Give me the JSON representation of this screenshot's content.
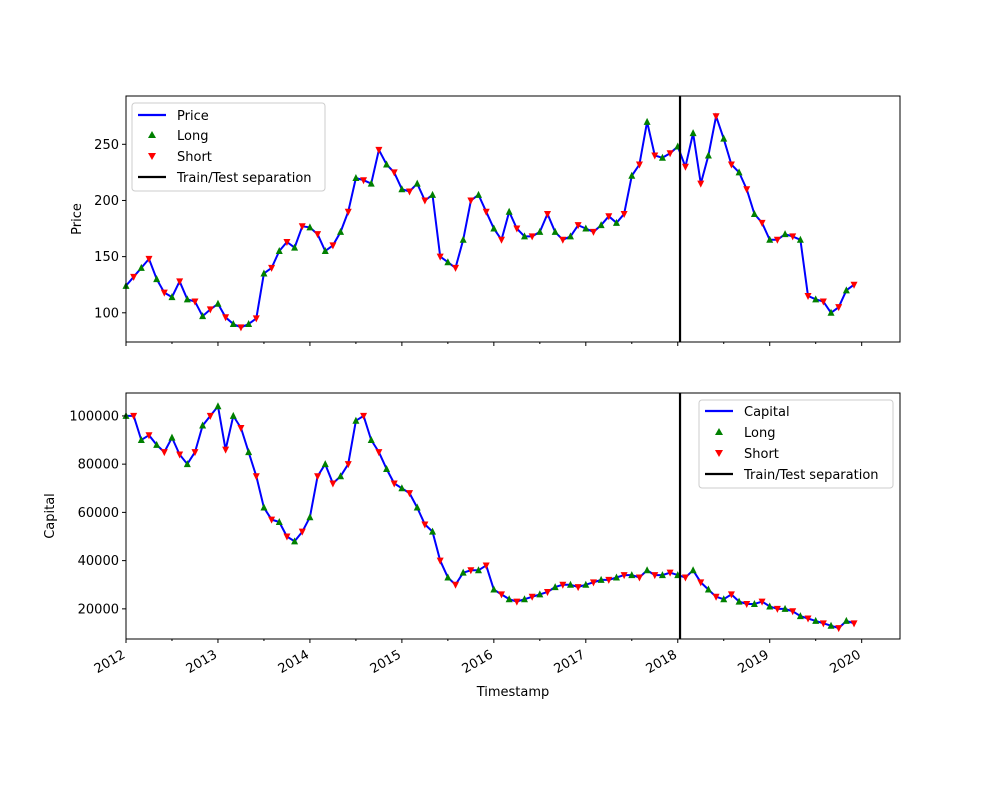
{
  "chart_data": [
    {
      "type": "line",
      "xlabel": "",
      "ylabel": "Price",
      "xlim": [
        "2012-01-01",
        "2020-06-01"
      ],
      "ylim": [
        74,
        293
      ],
      "yticks": [
        100,
        150,
        200,
        250
      ],
      "grid": false,
      "legend_placement": "upper-left",
      "legend": [
        {
          "label": "Price",
          "kind": "line",
          "color": "#0000ff"
        },
        {
          "label": "Long",
          "kind": "marker-up",
          "color": "#008000"
        },
        {
          "label": "Short",
          "kind": "marker-down",
          "color": "#ff0000"
        },
        {
          "label": "Train/Test separation",
          "kind": "line",
          "color": "#000000"
        }
      ],
      "separation_date": "2018-01-10",
      "series": [
        {
          "name": "Price",
          "color": "#0000ff",
          "x": [
            "2012-01-01",
            "2012-02-01",
            "2012-03-01",
            "2012-04-01",
            "2012-05-01",
            "2012-06-01",
            "2012-07-01",
            "2012-08-01",
            "2012-09-01",
            "2012-10-01",
            "2012-11-01",
            "2012-12-01",
            "2013-01-01",
            "2013-02-01",
            "2013-03-01",
            "2013-04-01",
            "2013-05-01",
            "2013-06-01",
            "2013-07-01",
            "2013-08-01",
            "2013-09-01",
            "2013-10-01",
            "2013-11-01",
            "2013-12-01",
            "2014-01-01",
            "2014-02-01",
            "2014-03-01",
            "2014-04-01",
            "2014-05-01",
            "2014-06-01",
            "2014-07-01",
            "2014-08-01",
            "2014-09-01",
            "2014-10-01",
            "2014-11-01",
            "2014-12-01",
            "2015-01-01",
            "2015-02-01",
            "2015-03-01",
            "2015-04-01",
            "2015-05-01",
            "2015-06-01",
            "2015-07-01",
            "2015-08-01",
            "2015-09-01",
            "2015-10-01",
            "2015-11-01",
            "2015-12-01",
            "2016-01-01",
            "2016-02-01",
            "2016-03-01",
            "2016-04-01",
            "2016-05-01",
            "2016-06-01",
            "2016-07-01",
            "2016-08-01",
            "2016-09-01",
            "2016-10-01",
            "2016-11-01",
            "2016-12-01",
            "2017-01-01",
            "2017-02-01",
            "2017-03-01",
            "2017-04-01",
            "2017-05-01",
            "2017-06-01",
            "2017-07-01",
            "2017-08-01",
            "2017-09-01",
            "2017-10-01",
            "2017-11-01",
            "2017-12-01",
            "2018-01-01",
            "2018-02-01",
            "2018-03-01",
            "2018-04-01",
            "2018-05-01",
            "2018-06-01",
            "2018-07-01",
            "2018-08-01",
            "2018-09-01",
            "2018-10-01",
            "2018-11-01",
            "2018-12-01",
            "2019-01-01",
            "2019-02-01",
            "2019-03-01",
            "2019-04-01",
            "2019-05-01",
            "2019-06-01",
            "2019-07-01",
            "2019-08-01",
            "2019-09-01",
            "2019-10-01",
            "2019-11-01",
            "2019-12-01"
          ],
          "y": [
            124,
            132,
            140,
            148,
            130,
            118,
            114,
            128,
            112,
            110,
            97,
            103,
            108,
            96,
            90,
            87,
            90,
            95,
            135,
            140,
            155,
            163,
            158,
            177,
            176,
            170,
            155,
            160,
            172,
            190,
            220,
            218,
            215,
            245,
            232,
            225,
            210,
            208,
            215,
            200,
            205,
            150,
            145,
            140,
            165,
            200,
            205,
            190,
            175,
            165,
            190,
            175,
            168,
            168,
            172,
            188,
            172,
            165,
            168,
            178,
            175,
            172,
            178,
            186,
            180,
            188,
            222,
            232,
            270,
            240,
            238,
            242,
            248,
            230,
            260,
            215,
            240,
            275,
            255,
            232,
            225,
            210,
            188,
            180,
            165,
            165,
            170,
            168,
            165,
            115,
            112,
            110,
            100,
            105,
            120,
            125
          ]
        }
      ]
    },
    {
      "type": "line",
      "xlabel": "Timestamp",
      "ylabel": "Capital",
      "xlim": [
        "2012-01-01",
        "2020-06-01"
      ],
      "ylim": [
        7500,
        109500
      ],
      "yticks": [
        20000,
        40000,
        60000,
        80000,
        100000
      ],
      "xticks": [
        "2012",
        "2013",
        "2014",
        "2015",
        "2016",
        "2017",
        "2018",
        "2019",
        "2020"
      ],
      "grid": false,
      "legend_placement": "upper-right",
      "legend": [
        {
          "label": "Capital",
          "kind": "line",
          "color": "#0000ff"
        },
        {
          "label": "Long",
          "kind": "marker-up",
          "color": "#008000"
        },
        {
          "label": "Short",
          "kind": "marker-down",
          "color": "#ff0000"
        },
        {
          "label": "Train/Test separation",
          "kind": "line",
          "color": "#000000"
        }
      ],
      "separation_date": "2018-01-10",
      "series": [
        {
          "name": "Capital",
          "color": "#0000ff",
          "x": [
            "2012-01-01",
            "2012-02-01",
            "2012-03-01",
            "2012-04-01",
            "2012-05-01",
            "2012-06-01",
            "2012-07-01",
            "2012-08-01",
            "2012-09-01",
            "2012-10-01",
            "2012-11-01",
            "2012-12-01",
            "2013-01-01",
            "2013-02-01",
            "2013-03-01",
            "2013-04-01",
            "2013-05-01",
            "2013-06-01",
            "2013-07-01",
            "2013-08-01",
            "2013-09-01",
            "2013-10-01",
            "2013-11-01",
            "2013-12-01",
            "2014-01-01",
            "2014-02-01",
            "2014-03-01",
            "2014-04-01",
            "2014-05-01",
            "2014-06-01",
            "2014-07-01",
            "2014-08-01",
            "2014-09-01",
            "2014-10-01",
            "2014-11-01",
            "2014-12-01",
            "2015-01-01",
            "2015-02-01",
            "2015-03-01",
            "2015-04-01",
            "2015-05-01",
            "2015-06-01",
            "2015-07-01",
            "2015-08-01",
            "2015-09-01",
            "2015-10-01",
            "2015-11-01",
            "2015-12-01",
            "2016-01-01",
            "2016-02-01",
            "2016-03-01",
            "2016-04-01",
            "2016-05-01",
            "2016-06-01",
            "2016-07-01",
            "2016-08-01",
            "2016-09-01",
            "2016-10-01",
            "2016-11-01",
            "2016-12-01",
            "2017-01-01",
            "2017-02-01",
            "2017-03-01",
            "2017-04-01",
            "2017-05-01",
            "2017-06-01",
            "2017-07-01",
            "2017-08-01",
            "2017-09-01",
            "2017-10-01",
            "2017-11-01",
            "2017-12-01",
            "2018-01-01",
            "2018-02-01",
            "2018-03-01",
            "2018-04-01",
            "2018-05-01",
            "2018-06-01",
            "2018-07-01",
            "2018-08-01",
            "2018-09-01",
            "2018-10-01",
            "2018-11-01",
            "2018-12-01",
            "2019-01-01",
            "2019-02-01",
            "2019-03-01",
            "2019-04-01",
            "2019-05-01",
            "2019-06-01",
            "2019-07-01",
            "2019-08-01",
            "2019-09-01",
            "2019-10-01",
            "2019-11-01",
            "2019-12-01"
          ],
          "y": [
            100000,
            100000,
            90000,
            92000,
            88000,
            85000,
            91000,
            84000,
            80000,
            85000,
            96000,
            100000,
            104000,
            86000,
            100000,
            95000,
            85000,
            75000,
            62000,
            57000,
            56000,
            50000,
            48000,
            52000,
            58000,
            75000,
            80000,
            72000,
            75000,
            80000,
            98000,
            100000,
            90000,
            85000,
            78000,
            72000,
            70000,
            68000,
            62000,
            55000,
            52000,
            40000,
            33000,
            30000,
            35000,
            36000,
            36000,
            38000,
            28000,
            26000,
            24000,
            23000,
            24000,
            25000,
            26000,
            27000,
            29000,
            30000,
            30000,
            29000,
            30000,
            31000,
            32000,
            32000,
            33000,
            34000,
            34000,
            33000,
            36000,
            34000,
            34000,
            35000,
            34000,
            33000,
            36000,
            31000,
            28000,
            25000,
            24000,
            26000,
            23000,
            22000,
            22000,
            23000,
            21000,
            20000,
            20000,
            19000,
            17000,
            16000,
            15000,
            14000,
            13000,
            12000,
            15000,
            14000
          ]
        }
      ]
    }
  ]
}
